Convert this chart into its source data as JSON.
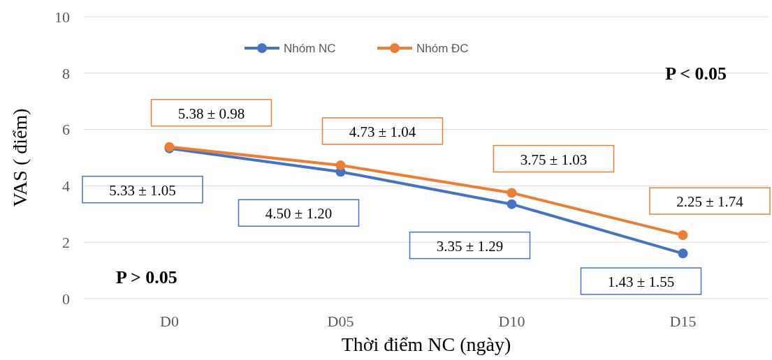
{
  "chart_data": {
    "type": "line",
    "xlabel": "Thời điểm NC (ngày)",
    "ylabel": "VAS ( điểm)",
    "categories": [
      "D0",
      "D05",
      "D10",
      "D15"
    ],
    "series": [
      {
        "name": "Nhóm NC",
        "color": "#4472c4",
        "values": [
          5.33,
          4.5,
          3.35,
          1.6
        ]
      },
      {
        "name": "Nhóm ĐC",
        "color": "#ed7d31",
        "values": [
          5.38,
          4.73,
          3.75,
          2.25
        ]
      }
    ],
    "ylim": [
      0,
      10
    ],
    "yticks": [
      0,
      2,
      4,
      6,
      8,
      10
    ],
    "grid": "y",
    "legend": "top",
    "marker": "circle",
    "line_style": "solid",
    "annotations": [
      "P > 0.05",
      "P < 0.05",
      {
        "text": "5.38 ± 0.98",
        "x": "D0",
        "y": 5.38
      },
      {
        "text": "5.33 ± 1.05",
        "x": "D0",
        "y": 5.33
      },
      {
        "text": "4.73 ± 1.04",
        "x": "D05",
        "y": 4.73
      },
      {
        "text": "4.50 ± 1.20",
        "x": "D05",
        "y": 4.5
      },
      {
        "text": "3.75 ± 1.03",
        "x": "D10",
        "y": 3.75
      },
      {
        "text": "3.35 ±  1.29",
        "x": "D10",
        "y": 3.35
      },
      {
        "text": "2.25 ±  1.74",
        "x": "D15",
        "y": 2.25
      },
      {
        "text": "1.43 ±  1.55",
        "x": "D15",
        "y": 1.6
      }
    ]
  }
}
